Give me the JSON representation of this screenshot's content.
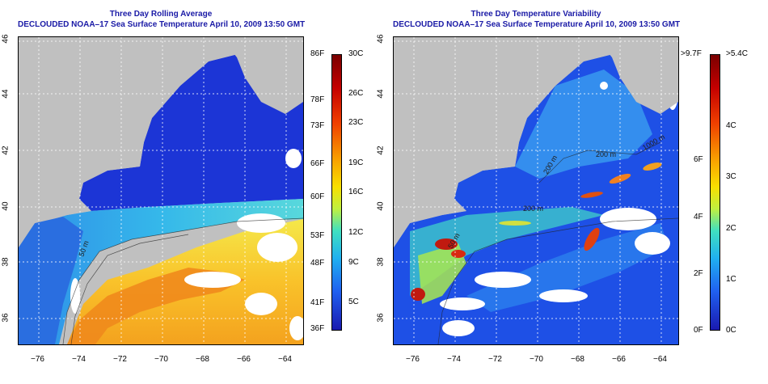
{
  "left_panel": {
    "title_line1": "Three Day Rolling Average",
    "title_line2": "DECLOUDED NOAA–17 Sea Surface Temperature April 10, 2009 13:50 GMT",
    "x_ticks": [
      "−76",
      "−74",
      "−72",
      "−70",
      "−68",
      "−66",
      "−64"
    ],
    "y_ticks": [
      "46",
      "44",
      "42",
      "40",
      "38",
      "36"
    ],
    "contour_label": "50 m",
    "colorbar_f": [
      "86F",
      "78F",
      "73F",
      "66F",
      "60F",
      "53F",
      "48F",
      "41F",
      "36F"
    ],
    "colorbar_c": [
      "30C",
      "26C",
      "23C",
      "19C",
      "16C",
      "12C",
      "9C",
      "5C"
    ]
  },
  "right_panel": {
    "title_line1": "Three Day Temperature Variability",
    "title_line2": "DECLOUDED NOAA–17 Sea Surface Temperature April 10, 2009 13:50 GMT",
    "x_ticks": [
      "−76",
      "−74",
      "−72",
      "−70",
      "−68",
      "−66",
      "−64"
    ],
    "y_ticks": [
      "46",
      "44",
      "42",
      "40",
      "38",
      "36"
    ],
    "contour_labels": [
      "200 m",
      "200 m",
      "200 m",
      "1000 m",
      "50 m"
    ],
    "colorbar_f": [
      ">9.7F",
      "6F",
      "4F",
      "2F",
      "0F"
    ],
    "colorbar_c": [
      ">5.4C",
      "4C",
      "3C",
      "2C",
      "1C",
      "0C"
    ]
  },
  "colors": {
    "title": "#1a1aa6",
    "land": "#c0c0c0",
    "cloud_mask": "#ffffff"
  }
}
